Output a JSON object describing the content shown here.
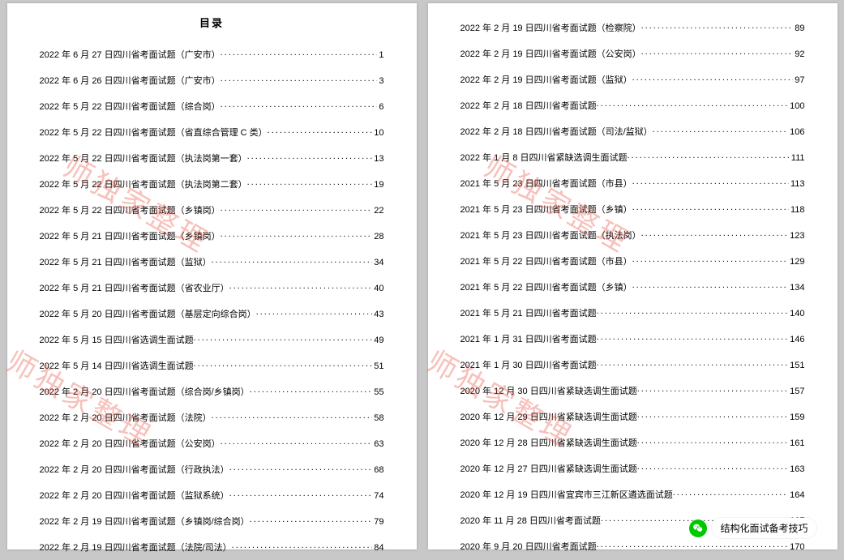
{
  "title": "目录",
  "watermark": "师独家整理",
  "wechat_label": "结构化面试备考技巧",
  "left": [
    {
      "label": "2022 年 6 月 27 日四川省考面试题（广安市）",
      "page": "1"
    },
    {
      "label": "2022 年 6 月 26 日四川省考面试题（广安市）",
      "page": "3"
    },
    {
      "label": "2022 年 5 月 22 日四川省考面试题（综合岗）",
      "page": "6"
    },
    {
      "label": "2022 年 5 月 22 日四川省考面试题（省直综合管理 C 类）",
      "page": "10"
    },
    {
      "label": "2022 年 5 月 22 日四川省考面试题（执法岗第一套）",
      "page": "13"
    },
    {
      "label": "2022 年 5 月 22 日四川省考面试题（执法岗第二套）",
      "page": "19"
    },
    {
      "label": "2022 年 5 月 22 日四川省考面试题（乡镇岗）",
      "page": "22"
    },
    {
      "label": "2022 年 5 月 21 日四川省考面试题（乡镇岗）",
      "page": "28"
    },
    {
      "label": "2022 年 5 月 21 日四川省考面试题（监狱）",
      "page": "34"
    },
    {
      "label": "2022 年 5 月 21 日四川省考面试题（省农业厅）",
      "page": "40"
    },
    {
      "label": "2022 年 5 月 20 日四川省考面试题（基层定向综合岗）",
      "page": "43"
    },
    {
      "label": "2022 年 5 月 15 日四川省选调生面试题",
      "page": "49"
    },
    {
      "label": "2022 年 5 月 14 日四川省选调生面试题",
      "page": "51"
    },
    {
      "label": "2022 年 2 月 20 日四川省考面试题（综合岗/乡镇岗）",
      "page": "55"
    },
    {
      "label": "2022 年 2 月 20 日四川省考面试题（法院）",
      "page": "58"
    },
    {
      "label": "2022 年 2 月 20 日四川省考面试题（公安岗）",
      "page": "63"
    },
    {
      "label": "2022 年 2 月 20 日四川省考面试题（行政执法）",
      "page": "68"
    },
    {
      "label": "2022 年 2 月 20 日四川省考面试题（监狱系统）",
      "page": "74"
    },
    {
      "label": "2022 年 2 月 19 日四川省考面试题（乡镇岗/综合岗）",
      "page": "79"
    },
    {
      "label": "2022 年 2 月 19 日四川省考面试题（法院/司法）",
      "page": "84"
    }
  ],
  "right": [
    {
      "label": "2022 年 2 月 19 日四川省考面试题（检察院）",
      "page": "89"
    },
    {
      "label": "2022 年 2 月 19 日四川省考面试题（公安岗）",
      "page": "92"
    },
    {
      "label": "2022 年 2 月 19 日四川省考面试题（监狱）",
      "page": "97"
    },
    {
      "label": "2022 年 2 月 18 日四川省考面试题",
      "page": "100"
    },
    {
      "label": "2022 年 2 月 18 日四川省考面试题（司法/监狱）",
      "page": "106"
    },
    {
      "label": "2022 年 1 月 8 日四川省紧缺选调生面试题",
      "page": "111"
    },
    {
      "label": "2021 年 5 月 23 日四川省考面试题（市县）",
      "page": "113"
    },
    {
      "label": "2021 年 5 月 23 日四川省考面试题（乡镇）",
      "page": "118"
    },
    {
      "label": "2021 年 5 月 23 日四川省考面试题（执法岗）",
      "page": "123"
    },
    {
      "label": "2021 年 5 月 22 日四川省考面试题（市县）",
      "page": "129"
    },
    {
      "label": "2021 年 5 月 22 日四川省考面试题（乡镇）",
      "page": "134"
    },
    {
      "label": "2021 年 5 月 21 日四川省考面试题",
      "page": "140"
    },
    {
      "label": "2021 年 1 月 31 日四川省考面试题",
      "page": "146"
    },
    {
      "label": "2021 年 1 月 30 日四川省考面试题",
      "page": "151"
    },
    {
      "label": "2020 年 12 月 30 日四川省紧缺选调生面试题",
      "page": "157"
    },
    {
      "label": "2020 年 12 月 29 日四川省紧缺选调生面试题",
      "page": "159"
    },
    {
      "label": "2020 年 12 月 28 日四川省紧缺选调生面试题",
      "page": "161"
    },
    {
      "label": "2020 年 12 月 27 日四川省紧缺选调生面试题",
      "page": "163"
    },
    {
      "label": "2020 年 12 月 19 日四川省宜宾市三江新区遴选面试题",
      "page": "164"
    },
    {
      "label": "2020 年 11 月 28 日四川省考面试题",
      "page": "167"
    },
    {
      "label": "2020 年 9 月 20 日四川省考面试题",
      "page": "170"
    }
  ]
}
